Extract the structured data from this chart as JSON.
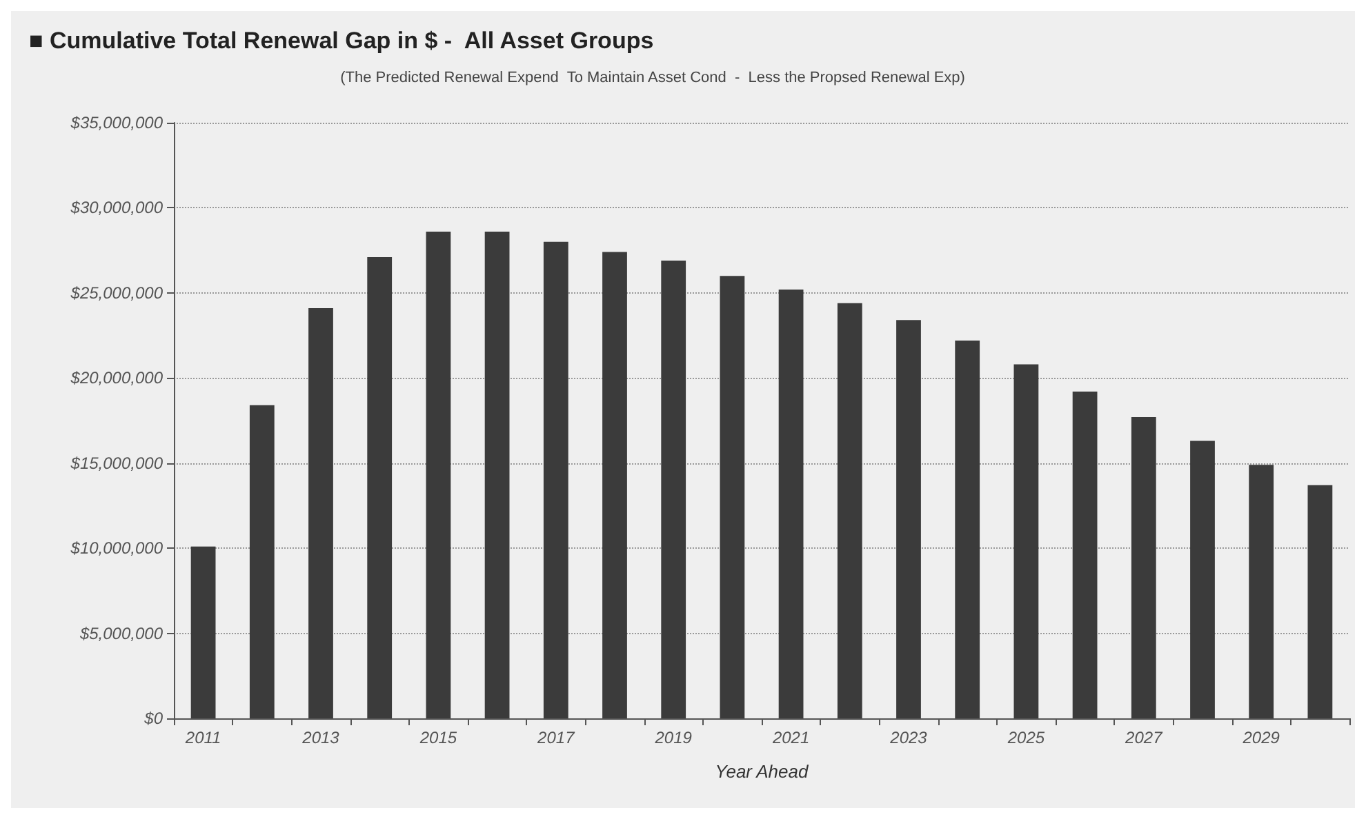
{
  "chart_data": {
    "type": "bar",
    "title": "■ Cumulative Total Renewal Gap in $ -  All Asset Groups",
    "subtitle": "(The Predicted Renewal Expend  To Maintain Asset Cond  -  Less the Propsed Renewal Exp)",
    "xlabel": "Year Ahead",
    "categories": [
      "2011",
      null,
      "2013",
      null,
      "2015",
      null,
      "2017",
      null,
      "2019",
      null,
      "2021",
      null,
      "2023",
      null,
      "2025",
      null,
      "2027",
      null,
      "2029",
      null
    ],
    "values": [
      10100000.0,
      18400000.0,
      24100000.0,
      27100000.0,
      28600000.0,
      28600000.0,
      28000000.0,
      27400000.0,
      26900000.0,
      26000000.0,
      25200000.0,
      24400000.0,
      23400000.0,
      22200000.0,
      20800000.0,
      19200000.0,
      17700000.0,
      16300000.0,
      14900000.0,
      13700000.0
    ],
    "color": "#3b3b3b",
    "ylim": [
      0,
      35000000
    ],
    "yticks": [
      {
        "value": 0,
        "label": "$0"
      },
      {
        "value": 5000000,
        "label": "$5,000,000"
      },
      {
        "value": 10000000,
        "label": "$10,000,000"
      },
      {
        "value": 15000000,
        "label": "$15,000,000"
      },
      {
        "value": 20000000,
        "label": "$20,000,000"
      },
      {
        "value": 25000000,
        "label": "$25,000,000"
      },
      {
        "value": 30000000,
        "label": "$30,000,000"
      },
      {
        "value": 35000000,
        "label": "$35,000,000"
      }
    ],
    "grid": "y"
  }
}
